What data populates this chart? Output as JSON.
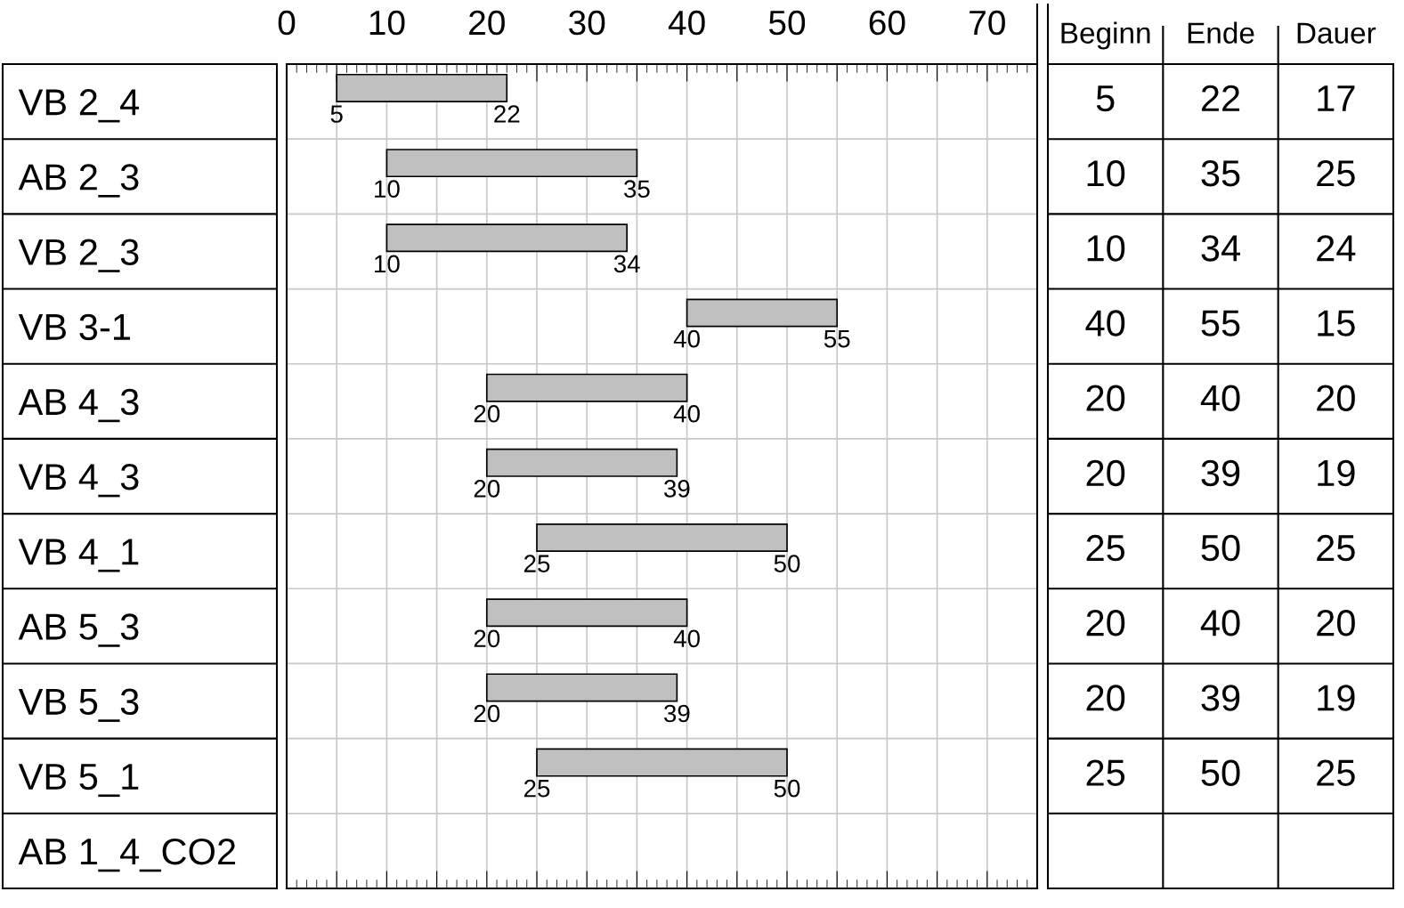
{
  "chart_data": [
    {
      "type": "bar",
      "orientation": "horizontal",
      "categories": [
        "VB 2_4",
        "AB 2_3",
        "VB 2_3",
        "VB 3-1",
        "AB 4_3",
        "VB 4_3",
        "VB 4_1",
        "AB 5_3",
        "VB 5_3",
        "VB 5_1",
        "AB 1_4_CO2"
      ],
      "base": [
        5,
        10,
        10,
        40,
        20,
        20,
        25,
        20,
        20,
        25,
        null
      ],
      "values": [
        17,
        25,
        24,
        15,
        20,
        19,
        25,
        20,
        19,
        25,
        null
      ],
      "color": "#c0c0c0",
      "xlim": [
        0,
        75
      ],
      "xticks": [
        0,
        {
          "value": 5,
          "label": null
        },
        10,
        {
          "value": 15,
          "label": null
        },
        20,
        {
          "value": 25,
          "label": null
        },
        30,
        {
          "value": 35,
          "label": null
        },
        40,
        {
          "value": 45,
          "label": null
        },
        50,
        {
          "value": 55,
          "label": null
        },
        60,
        {
          "value": 65,
          "label": null
        },
        70,
        {
          "value": 75,
          "label": null
        }
      ],
      "grid": true,
      "annotations": [
        {
          "text": "5",
          "x": 5,
          "y": "VB 2_4"
        },
        {
          "text": "22",
          "x": 22,
          "y": "VB 2_4"
        },
        {
          "text": "10",
          "x": 10,
          "y": "AB 2_3"
        },
        {
          "text": "35",
          "x": 35,
          "y": "AB 2_3"
        },
        {
          "text": "10",
          "x": 10,
          "y": "VB 2_3"
        },
        {
          "text": "34",
          "x": 34,
          "y": "VB 2_3"
        },
        {
          "text": "40",
          "x": 40,
          "y": "VB 3-1"
        },
        {
          "text": "55",
          "x": 55,
          "y": "VB 3-1"
        },
        {
          "text": "20",
          "x": 20,
          "y": "AB 4_3"
        },
        {
          "text": "40",
          "x": 40,
          "y": "AB 4_3"
        },
        {
          "text": "20",
          "x": 20,
          "y": "VB 4_3"
        },
        {
          "text": "39",
          "x": 39,
          "y": "VB 4_3"
        },
        {
          "text": "25",
          "x": 25,
          "y": "VB 4_1"
        },
        {
          "text": "50",
          "x": 50,
          "y": "VB 4_1"
        },
        {
          "text": "20",
          "x": 20,
          "y": "AB 5_3"
        },
        {
          "text": "40",
          "x": 40,
          "y": "AB 5_3"
        },
        {
          "text": "20",
          "x": 20,
          "y": "VB 5_3"
        },
        {
          "text": "39",
          "x": 39,
          "y": "VB 5_3"
        },
        {
          "text": "25",
          "x": 25,
          "y": "VB 5_1"
        },
        {
          "text": "50",
          "x": 50,
          "y": "VB 5_1"
        }
      ]
    },
    {
      "type": "other",
      "categories": [
        "Beginn",
        "Ende",
        "Dauer"
      ],
      "cell_labels": [
        [
          "5",
          "22",
          "17"
        ],
        [
          "10",
          "35",
          "25"
        ],
        [
          "10",
          "34",
          "24"
        ],
        [
          "40",
          "55",
          "15"
        ],
        [
          "20",
          "40",
          "20"
        ],
        [
          "20",
          "39",
          "19"
        ],
        [
          "25",
          "50",
          "25"
        ],
        [
          "20",
          "40",
          "20"
        ],
        [
          "20",
          "39",
          "19"
        ],
        [
          "25",
          "50",
          "25"
        ],
        [
          null,
          null,
          null
        ]
      ]
    }
  ]
}
